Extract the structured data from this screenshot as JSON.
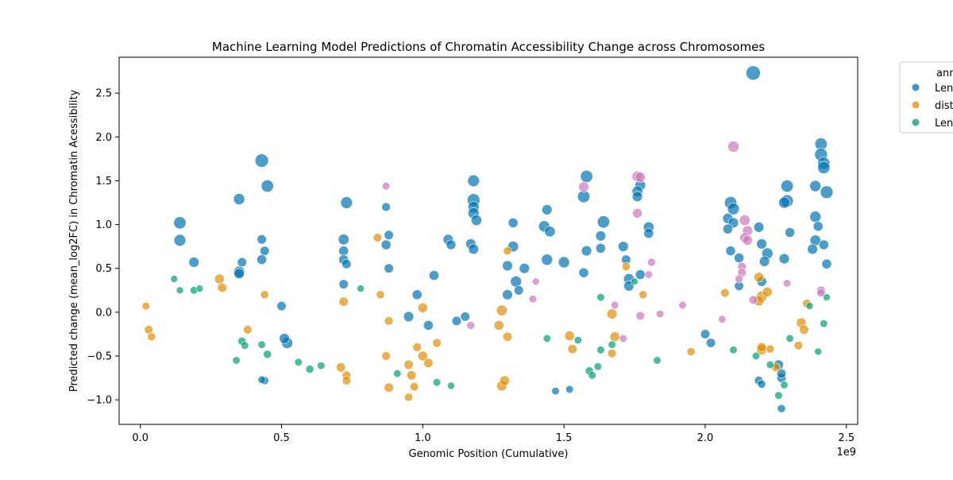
{
  "chart_data": {
    "type": "scatter",
    "title": "Machine Learning Model Predictions of Chromatin Accessibility Change across Chromosomes",
    "xlabel": "Genomic Position (Cumulative)",
    "ylabel": "Predicted change (mean_log2FC) in Chromatin Acessibility",
    "x_offset_label": "1e9",
    "x_unit": 1000000000,
    "xlim": [
      -0.075,
      2.54
    ],
    "ylim": [
      -1.28,
      2.91
    ],
    "x_ticks": [
      0.0,
      0.5,
      1.0,
      1.5,
      2.0,
      2.5
    ],
    "x_tick_labels": [
      "0.0",
      "0.5",
      "1.0",
      "1.5",
      "2.0",
      "2.5"
    ],
    "y_ticks": [
      -1.0,
      -0.5,
      0.0,
      0.5,
      1.0,
      1.5,
      2.0,
      2.5
    ],
    "y_tick_labels": [
      "−1.0",
      "−0.5",
      "0.0",
      "0.5",
      "1.0",
      "1.5",
      "2.0",
      "2.5"
    ],
    "grid": false,
    "legend": {
      "placement": "outside top-right (clipped)",
      "title": "ann",
      "entries": [
        {
          "label": "Len",
          "color": "#0173b2"
        },
        {
          "label": "dist",
          "color": "#de8f05"
        },
        {
          "label": "Len",
          "color": "#029e73"
        }
      ]
    },
    "series": [
      {
        "name": "Len",
        "color": "#0173b2",
        "points": [
          [
            2.17,
            2.73,
            1.0
          ],
          [
            0.43,
            1.73,
            0.9
          ],
          [
            2.41,
            1.92,
            0.8
          ],
          [
            2.41,
            1.8,
            0.85
          ],
          [
            2.42,
            1.7,
            0.8
          ],
          [
            2.42,
            1.65,
            0.8
          ],
          [
            0.45,
            1.44,
            0.8
          ],
          [
            2.39,
            1.44,
            0.7
          ],
          [
            2.43,
            1.37,
            0.85
          ],
          [
            2.29,
            1.44,
            0.8
          ],
          [
            0.35,
            1.29,
            0.7
          ],
          [
            0.73,
            1.25,
            0.75
          ],
          [
            1.18,
            1.5,
            0.75
          ],
          [
            1.18,
            1.28,
            0.85
          ],
          [
            1.18,
            1.2,
            0.7
          ],
          [
            1.18,
            1.13,
            0.7
          ],
          [
            1.19,
            1.05,
            0.65
          ],
          [
            1.58,
            1.55,
            0.8
          ],
          [
            1.57,
            1.32,
            0.8
          ],
          [
            1.77,
            1.45,
            0.65
          ],
          [
            1.76,
            1.38,
            0.65
          ],
          [
            1.76,
            1.32,
            0.6
          ],
          [
            2.09,
            1.25,
            0.8
          ],
          [
            2.1,
            1.18,
            0.75
          ],
          [
            2.29,
            1.27,
            0.8
          ],
          [
            2.28,
            1.25,
            0.7
          ],
          [
            0.14,
            1.02,
            0.8
          ],
          [
            0.14,
            0.82,
            0.75
          ],
          [
            0.19,
            0.57,
            0.6
          ],
          [
            0.43,
            0.83,
            0.5
          ],
          [
            0.44,
            0.7,
            0.5
          ],
          [
            0.43,
            0.6,
            0.55
          ],
          [
            0.35,
            0.46,
            0.7
          ],
          [
            0.35,
            0.44,
            0.6
          ],
          [
            0.36,
            0.57,
            0.5
          ],
          [
            0.72,
            0.83,
            0.65
          ],
          [
            0.72,
            0.7,
            0.55
          ],
          [
            0.72,
            0.6,
            0.55
          ],
          [
            0.73,
            0.55,
            0.5
          ],
          [
            0.72,
            0.32,
            0.5
          ],
          [
            0.87,
            1.2,
            0.45
          ],
          [
            0.88,
            0.88,
            0.5
          ],
          [
            0.87,
            0.77,
            0.55
          ],
          [
            0.88,
            0.5,
            0.5
          ],
          [
            1.09,
            0.83,
            0.6
          ],
          [
            1.1,
            0.77,
            0.55
          ],
          [
            1.04,
            0.42,
            0.55
          ],
          [
            1.17,
            0.78,
            0.6
          ],
          [
            1.18,
            0.72,
            0.6
          ],
          [
            1.3,
            0.53,
            0.6
          ],
          [
            1.32,
            0.75,
            0.65
          ],
          [
            1.32,
            1.02,
            0.55
          ],
          [
            1.36,
            0.5,
            0.6
          ],
          [
            1.44,
            1.17,
            0.6
          ],
          [
            1.43,
            0.98,
            0.7
          ],
          [
            1.45,
            0.92,
            0.65
          ],
          [
            1.44,
            0.6,
            0.7
          ],
          [
            1.5,
            0.57,
            0.7
          ],
          [
            1.58,
            0.7,
            0.6
          ],
          [
            1.57,
            0.45,
            0.55
          ],
          [
            1.63,
            0.73,
            0.55
          ],
          [
            1.63,
            0.87,
            0.6
          ],
          [
            1.64,
            1.03,
            0.8
          ],
          [
            1.71,
            0.75,
            0.6
          ],
          [
            1.72,
            0.6,
            0.5
          ],
          [
            1.77,
            0.43,
            0.55
          ],
          [
            1.73,
            0.38,
            0.65
          ],
          [
            1.73,
            0.3,
            0.6
          ],
          [
            1.8,
            0.97,
            0.65
          ],
          [
            1.8,
            0.9,
            0.55
          ],
          [
            2.08,
            1.07,
            0.6
          ],
          [
            2.1,
            1.02,
            0.6
          ],
          [
            2.08,
            0.95,
            0.55
          ],
          [
            2.09,
            0.7,
            0.55
          ],
          [
            2.12,
            0.62,
            0.55
          ],
          [
            2.12,
            0.3,
            0.5
          ],
          [
            2.19,
            0.97,
            0.6
          ],
          [
            2.2,
            0.78,
            0.6
          ],
          [
            2.22,
            0.67,
            0.7
          ],
          [
            2.21,
            0.58,
            0.6
          ],
          [
            2.2,
            0.35,
            0.55
          ],
          [
            2.3,
            0.91,
            0.55
          ],
          [
            2.28,
            0.61,
            0.6
          ],
          [
            2.39,
            1.09,
            0.7
          ],
          [
            2.39,
            0.82,
            0.65
          ],
          [
            2.38,
            0.72,
            0.6
          ],
          [
            2.4,
            0.98,
            0.55
          ],
          [
            2.42,
            0.77,
            0.55
          ],
          [
            2.43,
            0.55,
            0.55
          ],
          [
            1.3,
            0.2,
            0.6
          ],
          [
            1.33,
            0.35,
            0.7
          ],
          [
            1.34,
            0.25,
            0.5
          ],
          [
            0.5,
            0.07,
            0.5
          ],
          [
            0.52,
            -0.35,
            0.7
          ],
          [
            0.51,
            -0.3,
            0.6
          ],
          [
            0.95,
            -0.05,
            0.6
          ],
          [
            0.98,
            0.2,
            0.55
          ],
          [
            1.02,
            -0.15,
            0.55
          ],
          [
            1.12,
            -0.1,
            0.5
          ],
          [
            1.15,
            -0.05,
            0.5
          ],
          [
            2.0,
            -0.25,
            0.5
          ],
          [
            2.02,
            -0.35,
            0.5
          ],
          [
            2.26,
            -0.6,
            0.55
          ],
          [
            2.27,
            -0.75,
            0.5
          ],
          [
            2.27,
            -0.7,
            0.5
          ],
          [
            2.27,
            -1.1,
            0.4
          ],
          [
            2.19,
            -0.78,
            0.45
          ],
          [
            2.2,
            -0.82,
            0.4
          ],
          [
            1.47,
            -0.9,
            0.35
          ],
          [
            1.52,
            -0.88,
            0.35
          ],
          [
            0.44,
            -0.78,
            0.4
          ],
          [
            0.43,
            -0.77,
            0.35
          ]
        ]
      },
      {
        "name": "dist",
        "color": "#de8f05",
        "points": [
          [
            0.28,
            0.38,
            0.55
          ],
          [
            0.29,
            0.28,
            0.5
          ],
          [
            0.72,
            0.12,
            0.5
          ],
          [
            0.71,
            -0.63,
            0.5
          ],
          [
            0.73,
            -0.72,
            0.45
          ],
          [
            0.73,
            -0.78,
            0.45
          ],
          [
            0.84,
            0.85,
            0.45
          ],
          [
            0.88,
            -0.86,
            0.5
          ],
          [
            0.87,
            -0.5,
            0.45
          ],
          [
            0.96,
            -0.72,
            0.5
          ],
          [
            0.97,
            -0.85,
            0.45
          ],
          [
            0.95,
            -0.97,
            0.4
          ],
          [
            1.0,
            -0.5,
            0.55
          ],
          [
            1.02,
            -0.58,
            0.5
          ],
          [
            1.0,
            0.05,
            0.55
          ],
          [
            1.28,
            -0.84,
            0.6
          ],
          [
            1.29,
            -0.78,
            0.55
          ],
          [
            1.3,
            -0.28,
            0.5
          ],
          [
            1.27,
            -0.15,
            0.55
          ],
          [
            1.28,
            0.02,
            0.65
          ],
          [
            1.3,
            0.7,
            0.4
          ],
          [
            1.52,
            -0.27,
            0.55
          ],
          [
            1.53,
            -0.42,
            0.5
          ],
          [
            1.67,
            -0.02,
            0.6
          ],
          [
            1.68,
            -0.28,
            0.55
          ],
          [
            1.67,
            -0.47,
            0.45
          ],
          [
            1.72,
            0.52,
            0.4
          ],
          [
            2.07,
            0.22,
            0.45
          ],
          [
            2.19,
            0.4,
            0.55
          ],
          [
            2.2,
            0.18,
            0.65
          ],
          [
            2.19,
            0.13,
            0.6
          ],
          [
            2.22,
            0.23,
            0.55
          ],
          [
            2.2,
            -0.43,
            0.6
          ],
          [
            2.2,
            -0.4,
            0.5
          ],
          [
            2.25,
            -0.63,
            0.45
          ],
          [
            2.23,
            -0.42,
            0.4
          ],
          [
            2.34,
            -0.12,
            0.55
          ],
          [
            2.35,
            -0.2,
            0.5
          ],
          [
            2.33,
            -0.38,
            0.45
          ],
          [
            2.36,
            0.1,
            0.45
          ],
          [
            0.02,
            0.07,
            0.35
          ],
          [
            0.03,
            -0.2,
            0.45
          ],
          [
            0.04,
            -0.28,
            0.4
          ],
          [
            0.38,
            -0.2,
            0.45
          ],
          [
            0.44,
            0.2,
            0.4
          ],
          [
            0.95,
            -0.6,
            0.5
          ],
          [
            0.98,
            -0.4,
            0.45
          ],
          [
            0.85,
            0.2,
            0.4
          ],
          [
            0.88,
            -0.1,
            0.45
          ],
          [
            1.05,
            -0.35,
            0.45
          ],
          [
            1.78,
            0.2,
            0.4
          ],
          [
            1.95,
            -0.45,
            0.4
          ]
        ]
      },
      {
        "name": "Len",
        "color": "#029e73",
        "points": [
          [
            0.12,
            0.38,
            0.3
          ],
          [
            0.14,
            0.25,
            0.3
          ],
          [
            0.19,
            0.25,
            0.35
          ],
          [
            0.21,
            0.27,
            0.3
          ],
          [
            0.36,
            -0.33,
            0.4
          ],
          [
            0.37,
            -0.38,
            0.35
          ],
          [
            0.34,
            -0.55,
            0.35
          ],
          [
            0.43,
            -0.37,
            0.35
          ],
          [
            0.45,
            -0.48,
            0.4
          ],
          [
            0.56,
            -0.57,
            0.35
          ],
          [
            0.6,
            -0.65,
            0.4
          ],
          [
            0.64,
            -0.61,
            0.35
          ],
          [
            0.78,
            0.27,
            0.3
          ],
          [
            0.91,
            -0.7,
            0.35
          ],
          [
            1.05,
            -0.8,
            0.35
          ],
          [
            1.1,
            -0.84,
            0.3
          ],
          [
            1.55,
            -0.32,
            0.35
          ],
          [
            1.59,
            -0.67,
            0.4
          ],
          [
            1.6,
            -0.72,
            0.35
          ],
          [
            1.62,
            -0.62,
            0.35
          ],
          [
            1.63,
            -0.43,
            0.35
          ],
          [
            1.63,
            0.17,
            0.35
          ],
          [
            1.67,
            -0.37,
            0.35
          ],
          [
            1.75,
            0.35,
            0.3
          ],
          [
            1.83,
            -0.55,
            0.35
          ],
          [
            2.18,
            -0.5,
            0.35
          ],
          [
            2.23,
            -0.6,
            0.35
          ],
          [
            2.26,
            -0.95,
            0.35
          ],
          [
            2.28,
            -0.83,
            0.35
          ],
          [
            2.3,
            -0.3,
            0.35
          ],
          [
            2.37,
            0.07,
            0.3
          ],
          [
            2.42,
            -0.13,
            0.35
          ],
          [
            2.43,
            0.17,
            0.3
          ],
          [
            2.4,
            -0.45,
            0.3
          ],
          [
            2.1,
            -0.43,
            0.35
          ],
          [
            1.44,
            -0.3,
            0.35
          ]
        ]
      },
      {
        "name": "",
        "color": "#cc78bc",
        "points": [
          [
            2.1,
            1.89,
            0.7
          ],
          [
            2.14,
            1.05,
            0.65
          ],
          [
            2.15,
            0.93,
            0.6
          ],
          [
            2.14,
            0.85,
            0.55
          ],
          [
            2.15,
            0.82,
            0.55
          ],
          [
            1.76,
            1.55,
            0.65
          ],
          [
            1.77,
            1.54,
            0.6
          ],
          [
            1.57,
            1.43,
            0.6
          ],
          [
            1.76,
            1.13,
            0.55
          ],
          [
            1.81,
            0.57,
            0.4
          ],
          [
            0.87,
            1.44,
            0.35
          ],
          [
            2.13,
            0.52,
            0.45
          ],
          [
            2.13,
            0.45,
            0.45
          ],
          [
            2.12,
            0.38,
            0.4
          ],
          [
            2.17,
            0.14,
            0.45
          ],
          [
            2.41,
            0.25,
            0.45
          ],
          [
            2.41,
            0.22,
            0.4
          ],
          [
            2.29,
            0.33,
            0.35
          ],
          [
            1.77,
            -0.04,
            0.45
          ],
          [
            1.68,
            0.08,
            0.35
          ],
          [
            1.84,
            -0.02,
            0.35
          ],
          [
            1.8,
            0.43,
            0.35
          ],
          [
            1.39,
            0.15,
            0.35
          ],
          [
            1.4,
            0.35,
            0.3
          ],
          [
            1.71,
            -0.3,
            0.35
          ],
          [
            2.06,
            -0.08,
            0.35
          ],
          [
            1.92,
            0.08,
            0.35
          ],
          [
            1.17,
            -0.15,
            0.4
          ]
        ]
      }
    ]
  }
}
